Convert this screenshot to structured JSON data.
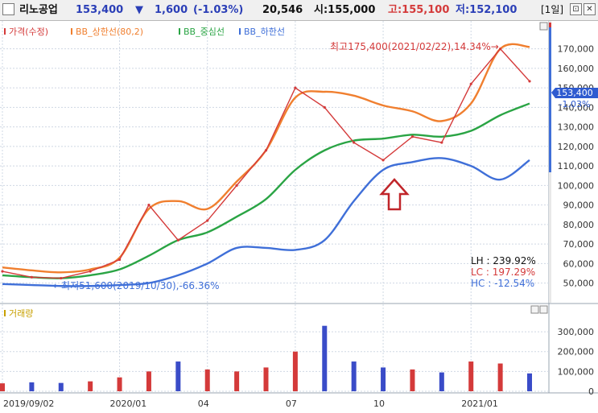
{
  "header": {
    "stock_name": "리노공업",
    "price": "153,400",
    "change_arrow": "▼",
    "change": "1,600",
    "change_pct": "(-1.03%)",
    "volume": "20,546",
    "open": "시:155,000",
    "high": "고:155,100",
    "low": "저:152,100",
    "period": "[1일]",
    "btn_restore": "⊡",
    "btn_close": "✕"
  },
  "colors": {
    "price": "#d43a3a",
    "bb_upper": "#f07f2f",
    "bb_mid": "#2aa444",
    "bb_lower": "#3f6fd8",
    "volume_up": "#d43a3a",
    "volume_down": "#3a4cc8",
    "grid": "#cfd8e4"
  },
  "legend": {
    "price": "가격(수정)",
    "bb_upper": "BB_상한선(80,2)",
    "bb_mid": "BB_중심선",
    "bb_lower": "BB_하한선"
  },
  "annotations": {
    "max_label": "최고175,400(2021/02/22),14.34%→",
    "min_label": "←최저51,600(2019/10/30),-66.36%",
    "current_price": "153,400",
    "current_change": "-1.03%",
    "lh": "LH : 239.92%",
    "lc": "LC : 197.29%",
    "hc": "HC : -12.54%"
  },
  "volume_panel": {
    "title": "거래량"
  },
  "chart_data": [
    {
      "type": "line",
      "x": [
        "2019/09/02",
        "2019/10",
        "2019/11",
        "2019/12",
        "2020/01",
        "2020/02",
        "2020/03",
        "2020/04",
        "2020/05",
        "2020/06",
        "2020/07",
        "2020/08",
        "2020/09",
        "2020/10",
        "2020/11",
        "2020/12",
        "2021/01",
        "2021/02",
        "2021/03"
      ],
      "series": [
        {
          "name": "가격(수정)",
          "values": [
            56000,
            53000,
            52500,
            56000,
            62000,
            90000,
            72000,
            82000,
            100000,
            118000,
            150000,
            140000,
            122000,
            113000,
            125000,
            122000,
            152000,
            170000,
            153400
          ]
        },
        {
          "name": "BB_상한선(80,2)",
          "values": [
            58000,
            56500,
            55500,
            57000,
            63000,
            88000,
            92000,
            88000,
            102000,
            118000,
            145000,
            148000,
            146000,
            141000,
            138000,
            133000,
            142000,
            170000,
            171000
          ]
        },
        {
          "name": "BB_중심선",
          "values": [
            54000,
            53000,
            52500,
            54000,
            57000,
            64000,
            72000,
            76000,
            84000,
            93000,
            108000,
            118000,
            123000,
            124000,
            126000,
            125000,
            128000,
            136000,
            142000
          ]
        },
        {
          "name": "BB_하한선",
          "values": [
            49500,
            49000,
            48500,
            48500,
            49000,
            50000,
            54000,
            60000,
            68000,
            68000,
            67000,
            72000,
            92000,
            108000,
            112000,
            114000,
            110000,
            103000,
            113000
          ]
        }
      ],
      "x_ticks": [
        "2019/09/02",
        "2020/01",
        "04",
        "07",
        "10",
        "2021/01"
      ],
      "y_ticks": [
        50000,
        60000,
        70000,
        80000,
        90000,
        100000,
        110000,
        120000,
        130000,
        140000,
        150000,
        160000,
        170000
      ],
      "ylim": [
        42000,
        181000
      ],
      "grid": true,
      "legend_position": "top-left"
    },
    {
      "type": "bar",
      "title": "거래량",
      "x": [
        "2019/09/02",
        "2019/10",
        "2019/11",
        "2019/12",
        "2020/01",
        "2020/02",
        "2020/03",
        "2020/04",
        "2020/05",
        "2020/06",
        "2020/07",
        "2020/08",
        "2020/09",
        "2020/10",
        "2020/11",
        "2020/12",
        "2021/01",
        "2021/02",
        "2021/03"
      ],
      "values": [
        40000,
        45000,
        42000,
        50000,
        70000,
        100000,
        150000,
        110000,
        100000,
        120000,
        200000,
        330000,
        150000,
        120000,
        110000,
        95000,
        150000,
        140000,
        90000
      ],
      "y_ticks": [
        0,
        100000,
        200000,
        300000
      ],
      "ylim": [
        0,
        345000
      ]
    }
  ]
}
